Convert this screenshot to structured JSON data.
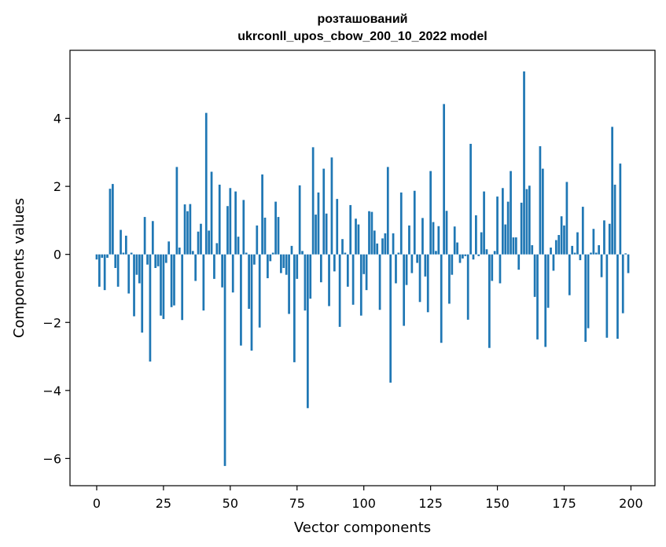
{
  "chart_data": {
    "type": "bar",
    "title_line1": "розташований",
    "title_line2": "ukrconll_upos_cbow_200_10_2022 model",
    "xlabel": "Vector components",
    "ylabel": "Components values",
    "xlim": [
      -10,
      209
    ],
    "ylim": [
      -6.8,
      6.0
    ],
    "xticks": [
      0,
      25,
      50,
      75,
      100,
      125,
      150,
      175,
      200
    ],
    "xtick_labels": [
      "0",
      "25",
      "50",
      "75",
      "100",
      "125",
      "150",
      "175",
      "200"
    ],
    "yticks": [
      -6,
      -4,
      -2,
      0,
      2,
      4
    ],
    "ytick_labels": [
      "−6",
      "−4",
      "−2",
      "0",
      "2",
      "4"
    ],
    "color": "#1f77b4",
    "values": [
      -0.15,
      -0.95,
      -0.1,
      -1.05,
      -0.1,
      1.93,
      2.07,
      -0.4,
      -0.95,
      0.72,
      0.05,
      0.55,
      -1.15,
      0.05,
      -1.82,
      -0.6,
      -0.85,
      -2.3,
      1.1,
      -0.3,
      -3.15,
      0.98,
      -0.4,
      -0.35,
      -1.8,
      -1.9,
      -0.25,
      0.38,
      -1.55,
      -1.5,
      2.57,
      0.2,
      -1.93,
      1.47,
      1.27,
      1.48,
      0.1,
      -0.78,
      0.67,
      0.9,
      -1.65,
      4.16,
      0.7,
      2.43,
      -0.72,
      0.33,
      2.05,
      -0.97,
      -6.22,
      1.42,
      1.95,
      -1.12,
      1.85,
      0.52,
      -2.68,
      1.6,
      0.05,
      -1.6,
      -2.83,
      -0.3,
      0.85,
      -2.15,
      2.35,
      1.08,
      -0.7,
      -0.2,
      0.05,
      1.55,
      1.1,
      -0.55,
      -0.4,
      -0.6,
      -1.75,
      0.25,
      -3.17,
      -0.72,
      2.03,
      0.1,
      -1.65,
      -4.52,
      -1.3,
      3.15,
      1.17,
      1.82,
      -0.82,
      2.52,
      1.2,
      -1.52,
      2.85,
      -0.5,
      1.63,
      -2.13,
      0.45,
      0.05,
      -0.95,
      1.45,
      -1.48,
      1.05,
      0.88,
      -1.8,
      -0.58,
      -1.05,
      1.27,
      1.25,
      0.7,
      0.32,
      -1.63,
      0.47,
      0.62,
      2.57,
      -3.77,
      0.62,
      -0.85,
      0.05,
      1.82,
      -2.1,
      -0.9,
      0.85,
      -0.55,
      1.87,
      -0.25,
      -1.4,
      1.07,
      -0.65,
      -1.7,
      2.45,
      0.95,
      0.1,
      0.83,
      -2.6,
      4.42,
      1.28,
      -1.45,
      -0.6,
      0.82,
      0.35,
      -0.25,
      -0.12,
      -0.05,
      -1.92,
      3.25,
      -0.15,
      1.15,
      -0.05,
      0.65,
      1.85,
      0.15,
      -2.75,
      -0.78,
      0.1,
      1.7,
      -0.85,
      1.95,
      0.88,
      1.55,
      2.45,
      0.5,
      0.5,
      -0.45,
      1.52,
      5.38,
      1.92,
      2.02,
      0.27,
      -1.25,
      -2.5,
      3.18,
      2.52,
      -2.72,
      -1.57,
      0.2,
      -0.48,
      0.42,
      0.57,
      1.12,
      0.85,
      2.13,
      -1.2,
      0.25,
      0.05,
      0.65,
      -0.17,
      1.4,
      -2.57,
      -2.17,
      0.05,
      0.75,
      0.05,
      0.27,
      -0.67,
      1.0,
      -2.45,
      0.9,
      3.75,
      2.05,
      -2.48,
      2.67,
      -1.73,
      0.03,
      -0.55
    ]
  }
}
